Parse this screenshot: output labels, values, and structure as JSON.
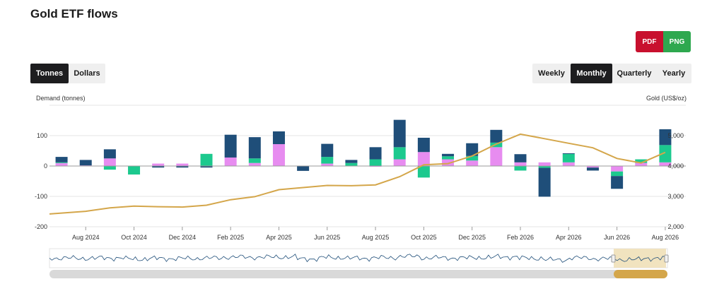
{
  "title": "Gold ETF flows",
  "export": {
    "pdf": "PDF",
    "png": "PNG"
  },
  "units": {
    "options": [
      "Tonnes",
      "Dollars"
    ],
    "selected": "Tonnes"
  },
  "period": {
    "options": [
      "Weekly",
      "Monthly",
      "Quarterly",
      "Yearly"
    ],
    "selected": "Monthly"
  },
  "colors": {
    "series1": "#1f4e79",
    "series2": "#1cc98e",
    "series3": "#e78cf0",
    "gold_line": "#d4a64a",
    "navigator_line": "#1f4e79",
    "navigator_window": "#efe0b8",
    "scrollbar_track": "#d9d9d9",
    "scrollbar_thumb": "#d4a64a"
  },
  "chart_data": {
    "type": "bar",
    "stacked": true,
    "categories": [
      "Jul 2024",
      "Aug 2024",
      "Sep 2024",
      "Oct 2024",
      "Nov 2024",
      "Dec 2024",
      "Jan 2025",
      "Feb 2025",
      "Mar 2025",
      "Apr 2025",
      "May 2025",
      "Jun 2025",
      "Jul 2025",
      "Aug 2025",
      "Sep 2025",
      "Oct 2025",
      "Nov 2025",
      "Dec 2025",
      "Jan 2026",
      "Feb 2026",
      "Mar 2026",
      "Apr 2026",
      "May 2026",
      "Jun 2026",
      "Jul 2026",
      "Aug 2026"
    ],
    "xtick_labels": [
      "Aug 2024",
      "Oct 2024",
      "Dec 2024",
      "Feb 2025",
      "Apr 2025",
      "Jun 2025",
      "Aug 2025",
      "Oct 2025",
      "Dec 2025",
      "Feb 2026",
      "Apr 2026",
      "Jun 2026",
      "Aug 2026"
    ],
    "series": [
      {
        "values": [
          18,
          18,
          30,
          0,
          -5,
          -5,
          -5,
          75,
          70,
          42,
          -16,
          43,
          10,
          40,
          90,
          47,
          8,
          42,
          42,
          27,
          -95,
          2,
          -10,
          -42,
          0,
          52
        ]
      },
      {
        "values": [
          2,
          0,
          -12,
          -28,
          0,
          0,
          40,
          0,
          15,
          0,
          0,
          22,
          10,
          22,
          40,
          -38,
          10,
          15,
          15,
          -15,
          -6,
          28,
          0,
          -15,
          12,
          57
        ]
      },
      {
        "values": [
          10,
          2,
          25,
          0,
          8,
          8,
          0,
          28,
          10,
          72,
          0,
          8,
          0,
          -2,
          22,
          46,
          22,
          18,
          62,
          12,
          12,
          12,
          -5,
          -18,
          10,
          12
        ]
      }
    ],
    "gold_price": [
      2420,
      2510,
      2620,
      2680,
      2660,
      2650,
      2710,
      2890,
      2990,
      3220,
      3290,
      3360,
      3350,
      3380,
      3650,
      4040,
      4080,
      4330,
      4720,
      5050,
      4900,
      4750,
      4600,
      4250,
      4100,
      4450
    ],
    "y_left": {
      "label": "Demand (tonnes)",
      "min": -200,
      "max": 100,
      "ticks": [
        -200,
        -100,
        0,
        100
      ]
    },
    "y_right": {
      "label": "Gold (US$/oz)",
      "min": 2000,
      "max": 5000,
      "ticks": [
        "2,000",
        "3,000",
        "4,000",
        "5,000"
      ]
    },
    "grid": true,
    "navigator": true
  }
}
